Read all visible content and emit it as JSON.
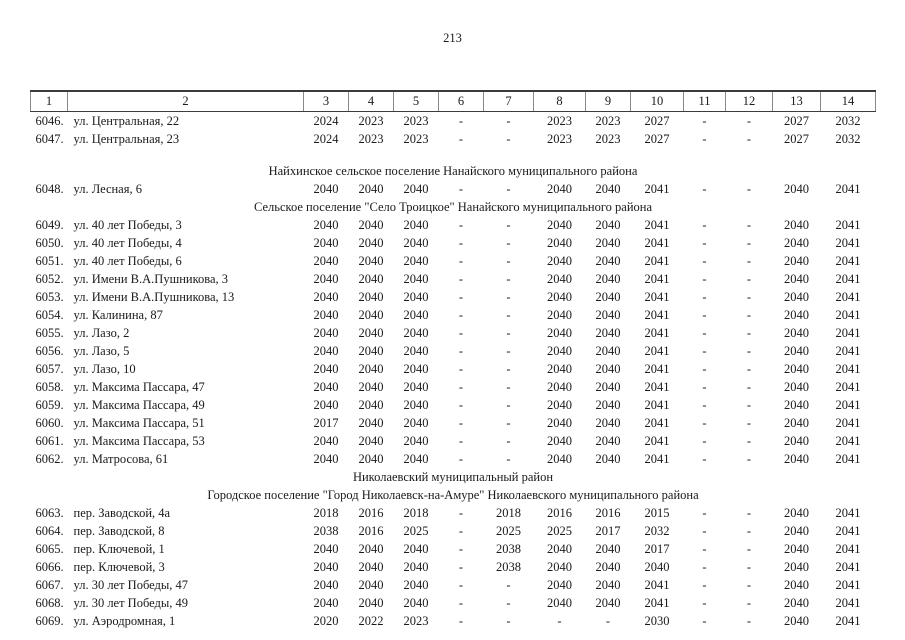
{
  "page": {
    "number": "213"
  },
  "table": {
    "header_cols": [
      "1",
      "2",
      "3",
      "4",
      "5",
      "6",
      "7",
      "8",
      "9",
      "10",
      "11",
      "12",
      "13",
      "14"
    ],
    "rows": [
      {
        "type": "data",
        "num": "6046.",
        "address": "ул. Центральная, 22",
        "values": [
          "2024",
          "2023",
          "2023",
          "-",
          "-",
          "2023",
          "2023",
          "2027",
          "-",
          "-",
          "2027",
          "2032"
        ]
      },
      {
        "type": "data",
        "num": "6047.",
        "address": "ул. Центральная, 23",
        "values": [
          "2024",
          "2023",
          "2023",
          "-",
          "-",
          "2023",
          "2023",
          "2027",
          "-",
          "-",
          "2027",
          "2032"
        ]
      },
      {
        "type": "spacer"
      },
      {
        "type": "section",
        "title": "Найхинское сельское поселение Нанайского муниципального района"
      },
      {
        "type": "data",
        "num": "6048.",
        "address": "ул. Лесная, 6",
        "values": [
          "2040",
          "2040",
          "2040",
          "-",
          "-",
          "2040",
          "2040",
          "2041",
          "-",
          "-",
          "2040",
          "2041"
        ]
      },
      {
        "type": "section",
        "title": "Сельское поселение \"Село Троицкое\" Нанайского муниципального района"
      },
      {
        "type": "data",
        "num": "6049.",
        "address": "ул. 40 лет Победы, 3",
        "values": [
          "2040",
          "2040",
          "2040",
          "-",
          "-",
          "2040",
          "2040",
          "2041",
          "-",
          "-",
          "2040",
          "2041"
        ]
      },
      {
        "type": "data",
        "num": "6050.",
        "address": "ул. 40 лет Победы, 4",
        "values": [
          "2040",
          "2040",
          "2040",
          "-",
          "-",
          "2040",
          "2040",
          "2041",
          "-",
          "-",
          "2040",
          "2041"
        ]
      },
      {
        "type": "data",
        "num": "6051.",
        "address": "ул. 40 лет Победы, 6",
        "values": [
          "2040",
          "2040",
          "2040",
          "-",
          "-",
          "2040",
          "2040",
          "2041",
          "-",
          "-",
          "2040",
          "2041"
        ]
      },
      {
        "type": "data",
        "num": "6052.",
        "address": "ул. Имени В.А.Пушникова, 3",
        "values": [
          "2040",
          "2040",
          "2040",
          "-",
          "-",
          "2040",
          "2040",
          "2041",
          "-",
          "-",
          "2040",
          "2041"
        ]
      },
      {
        "type": "data",
        "num": "6053.",
        "address": "ул. Имени В.А.Пушникова, 13",
        "values": [
          "2040",
          "2040",
          "2040",
          "-",
          "-",
          "2040",
          "2040",
          "2041",
          "-",
          "-",
          "2040",
          "2041"
        ]
      },
      {
        "type": "data",
        "num": "6054.",
        "address": "ул. Калинина, 87",
        "values": [
          "2040",
          "2040",
          "2040",
          "-",
          "-",
          "2040",
          "2040",
          "2041",
          "-",
          "-",
          "2040",
          "2041"
        ]
      },
      {
        "type": "data",
        "num": "6055.",
        "address": "ул. Лазо, 2",
        "values": [
          "2040",
          "2040",
          "2040",
          "-",
          "-",
          "2040",
          "2040",
          "2041",
          "-",
          "-",
          "2040",
          "2041"
        ]
      },
      {
        "type": "data",
        "num": "6056.",
        "address": "ул. Лазо, 5",
        "values": [
          "2040",
          "2040",
          "2040",
          "-",
          "-",
          "2040",
          "2040",
          "2041",
          "-",
          "-",
          "2040",
          "2041"
        ]
      },
      {
        "type": "data",
        "num": "6057.",
        "address": "ул. Лазо, 10",
        "values": [
          "2040",
          "2040",
          "2040",
          "-",
          "-",
          "2040",
          "2040",
          "2041",
          "-",
          "-",
          "2040",
          "2041"
        ]
      },
      {
        "type": "data",
        "num": "6058.",
        "address": "ул. Максима Пассара, 47",
        "values": [
          "2040",
          "2040",
          "2040",
          "-",
          "-",
          "2040",
          "2040",
          "2041",
          "-",
          "-",
          "2040",
          "2041"
        ]
      },
      {
        "type": "data",
        "num": "6059.",
        "address": "ул. Максима Пассара, 49",
        "values": [
          "2040",
          "2040",
          "2040",
          "-",
          "-",
          "2040",
          "2040",
          "2041",
          "-",
          "-",
          "2040",
          "2041"
        ]
      },
      {
        "type": "data",
        "num": "6060.",
        "address": "ул. Максима Пассара, 51",
        "values": [
          "2017",
          "2040",
          "2040",
          "-",
          "-",
          "2040",
          "2040",
          "2041",
          "-",
          "-",
          "2040",
          "2041"
        ]
      },
      {
        "type": "data",
        "num": "6061.",
        "address": "ул. Максима Пассара, 53",
        "values": [
          "2040",
          "2040",
          "2040",
          "-",
          "-",
          "2040",
          "2040",
          "2041",
          "-",
          "-",
          "2040",
          "2041"
        ]
      },
      {
        "type": "data",
        "num": "6062.",
        "address": "ул. Матросова, 61",
        "values": [
          "2040",
          "2040",
          "2040",
          "-",
          "-",
          "2040",
          "2040",
          "2041",
          "-",
          "-",
          "2040",
          "2041"
        ]
      },
      {
        "type": "section",
        "title": "Николаевский муниципальный район"
      },
      {
        "type": "section",
        "title": "Городское поселение \"Город Николаевск-на-Амуре\" Николаевского муниципального района"
      },
      {
        "type": "data",
        "num": "6063.",
        "address": "пер. Заводской, 4а",
        "values": [
          "2018",
          "2016",
          "2018",
          "-",
          "2018",
          "2016",
          "2016",
          "2015",
          "-",
          "-",
          "2040",
          "2041"
        ]
      },
      {
        "type": "data",
        "num": "6064.",
        "address": "пер. Заводской, 8",
        "values": [
          "2038",
          "2016",
          "2025",
          "-",
          "2025",
          "2025",
          "2017",
          "2032",
          "-",
          "-",
          "2040",
          "2041"
        ]
      },
      {
        "type": "data",
        "num": "6065.",
        "address": "пер. Ключевой, 1",
        "values": [
          "2040",
          "2040",
          "2040",
          "-",
          "2038",
          "2040",
          "2040",
          "2017",
          "-",
          "-",
          "2040",
          "2041"
        ]
      },
      {
        "type": "data",
        "num": "6066.",
        "address": "пер. Ключевой, 3",
        "values": [
          "2040",
          "2040",
          "2040",
          "-",
          "2038",
          "2040",
          "2040",
          "2040",
          "-",
          "-",
          "2040",
          "2041"
        ]
      },
      {
        "type": "data",
        "num": "6067.",
        "address": "ул. 30 лет Победы, 47",
        "values": [
          "2040",
          "2040",
          "2040",
          "-",
          "-",
          "2040",
          "2040",
          "2041",
          "-",
          "-",
          "2040",
          "2041"
        ]
      },
      {
        "type": "data",
        "num": "6068.",
        "address": "ул. 30 лет Победы, 49",
        "values": [
          "2040",
          "2040",
          "2040",
          "-",
          "-",
          "2040",
          "2040",
          "2041",
          "-",
          "-",
          "2040",
          "2041"
        ]
      },
      {
        "type": "data",
        "num": "6069.",
        "address": "ул. Аэродромная, 1",
        "values": [
          "2020",
          "2022",
          "2023",
          "-",
          "-",
          "-",
          "-",
          "2030",
          "-",
          "-",
          "2040",
          "2041"
        ]
      }
    ]
  }
}
